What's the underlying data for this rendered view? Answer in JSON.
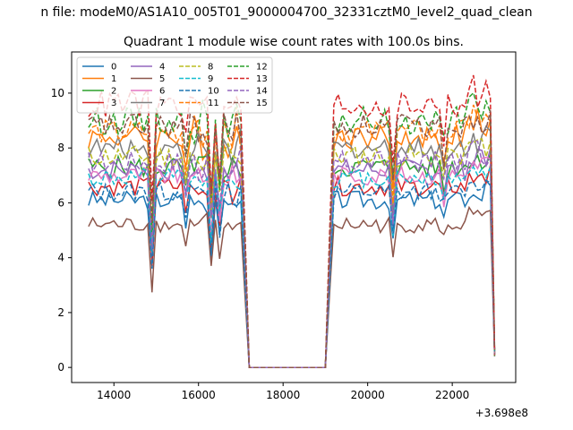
{
  "figure": {
    "suptitle": "n file: modeM0/AS1A10_005T01_9000004700_32331cztM0_level2_quad_clean"
  },
  "chart_data": {
    "type": "line",
    "title": "Quadrant 1 module wise count rates with 100.0s bins.",
    "xlabel": "",
    "ylabel": "",
    "offset_text": "+3.698e8",
    "xlim": [
      13000,
      23500
    ],
    "ylim": [
      -0.55,
      11.5
    ],
    "xticks": [
      14000,
      16000,
      18000,
      20000,
      22000
    ],
    "xtick_labels": [
      "14000",
      "16000",
      "18000",
      "20000",
      "22000"
    ],
    "yticks": [
      0,
      2,
      4,
      6,
      8,
      10
    ],
    "ytick_labels": [
      "0",
      "2",
      "4",
      "6",
      "8",
      "10"
    ],
    "grid": false,
    "legend": {
      "placement": "upper-left",
      "columns": 4
    },
    "segments": [
      {
        "start": 13400,
        "end": 17100,
        "step": 100
      },
      {
        "start": 17200,
        "end": 19000,
        "step": 100,
        "gap": true
      },
      {
        "start": 19100,
        "end": 23000,
        "step": 100
      }
    ],
    "series": [
      {
        "name": "0",
        "color": "#1f77b4",
        "dash": false,
        "base": 6.1,
        "amp": 0.35
      },
      {
        "name": "1",
        "color": "#ff7f0e",
        "dash": false,
        "base": 8.4,
        "amp": 0.45
      },
      {
        "name": "2",
        "color": "#2ca02c",
        "dash": false,
        "base": 7.3,
        "amp": 0.4
      },
      {
        "name": "3",
        "color": "#d62728",
        "dash": false,
        "base": 6.6,
        "amp": 0.35
      },
      {
        "name": "4",
        "color": "#9467bd",
        "dash": false,
        "base": 7.2,
        "amp": 0.4
      },
      {
        "name": "5",
        "color": "#8c564b",
        "dash": false,
        "base": 5.2,
        "amp": 0.3
      },
      {
        "name": "6",
        "color": "#e377c2",
        "dash": false,
        "base": 7.0,
        "amp": 0.35
      },
      {
        "name": "7",
        "color": "#7f7f7f",
        "dash": false,
        "base": 8.0,
        "amp": 0.4
      },
      {
        "name": "8",
        "color": "#bcbd22",
        "dash": true,
        "base": 7.7,
        "amp": 0.4
      },
      {
        "name": "9",
        "color": "#17becf",
        "dash": true,
        "base": 6.9,
        "amp": 0.35
      },
      {
        "name": "10",
        "color": "#1f77b4",
        "dash": true,
        "base": 6.4,
        "amp": 0.35
      },
      {
        "name": "11",
        "color": "#ff7f0e",
        "dash": true,
        "base": 8.6,
        "amp": 0.45
      },
      {
        "name": "12",
        "color": "#2ca02c",
        "dash": true,
        "base": 9.0,
        "amp": 0.5
      },
      {
        "name": "13",
        "color": "#d62728",
        "dash": true,
        "base": 9.6,
        "amp": 0.55
      },
      {
        "name": "14",
        "color": "#9467bd",
        "dash": true,
        "base": 7.5,
        "amp": 0.4
      },
      {
        "name": "15",
        "color": "#8c564b",
        "dash": true,
        "base": 8.8,
        "amp": 0.45
      }
    ]
  }
}
